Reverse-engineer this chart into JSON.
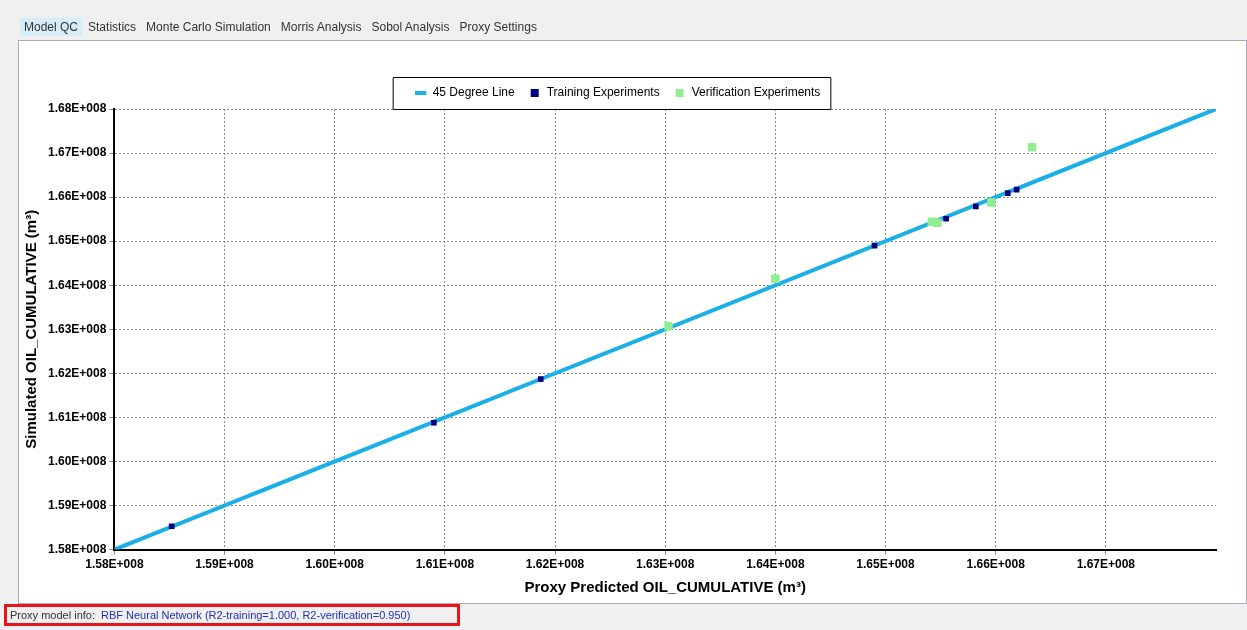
{
  "chart_data": {
    "type": "scatter",
    "xlabel": "Proxy Predicted OIL_CUMULATIVE (m³)",
    "ylabel": "Simulated OIL_CUMULATIVE (m³)",
    "xlim": [
      158000000,
      168000000
    ],
    "ylim": [
      158000000,
      168000000
    ],
    "xticks": [
      {
        "value": 158000000,
        "label": "1.58E+008"
      },
      {
        "value": 159000000,
        "label": "1.59E+008"
      },
      {
        "value": 160000000,
        "label": "1.60E+008"
      },
      {
        "value": 161000000,
        "label": "1.61E+008"
      },
      {
        "value": 162000000,
        "label": "1.62E+008"
      },
      {
        "value": 163000000,
        "label": "1.63E+008"
      },
      {
        "value": 164000000,
        "label": "1.64E+008"
      },
      {
        "value": 165000000,
        "label": "1.65E+008"
      },
      {
        "value": 166000000,
        "label": "1.66E+008"
      },
      {
        "value": 167000000,
        "label": "1.67E+008"
      }
    ],
    "yticks": [
      {
        "value": 158000000,
        "label": "1.58E+008"
      },
      {
        "value": 159000000,
        "label": "1.59E+008"
      },
      {
        "value": 160000000,
        "label": "1.60E+008"
      },
      {
        "value": 161000000,
        "label": "1.61E+008"
      },
      {
        "value": 162000000,
        "label": "1.62E+008"
      },
      {
        "value": 163000000,
        "label": "1.63E+008"
      },
      {
        "value": 164000000,
        "label": "1.64E+008"
      },
      {
        "value": 165000000,
        "label": "1.65E+008"
      },
      {
        "value": 166000000,
        "label": "1.66E+008"
      },
      {
        "value": 167000000,
        "label": "1.67E+008"
      },
      {
        "value": 168000000,
        "label": "1.68E+008"
      }
    ],
    "grid": true,
    "legend": "top",
    "series": [
      {
        "name": "45 Degree Line",
        "type": "line",
        "marker": "none",
        "color": "#1ab0e6",
        "x": [
          158000000,
          168000000
        ],
        "values": [
          158000000,
          168000000
        ]
      },
      {
        "name": "Training Experiments",
        "marker": "square",
        "color": "#000080",
        "x": [
          158520000,
          160900000,
          161870000,
          164900000,
          165550000,
          165820000,
          166110000,
          166190000
        ],
        "values": [
          158530000,
          160880000,
          161870000,
          164900000,
          165510000,
          165790000,
          166090000,
          166170000
        ]
      },
      {
        "name": "Verification Experiments",
        "marker": "square",
        "color": "#90ee90",
        "x": [
          163030000,
          164000000,
          165420000,
          165470000,
          165960000,
          166330000
        ],
        "values": [
          163070000,
          164150000,
          165440000,
          165420000,
          165880000,
          167130000
        ]
      }
    ],
    "annotations": [
      "Model QC",
      "Statistics",
      "Monte Carlo Simulation",
      "Morris Analysis",
      "Sobol Analysis",
      "Proxy Settings",
      "Proxy model info:",
      "RBF Neural Network (R2-training=1.000, R2-verification=0.950)"
    ]
  }
}
